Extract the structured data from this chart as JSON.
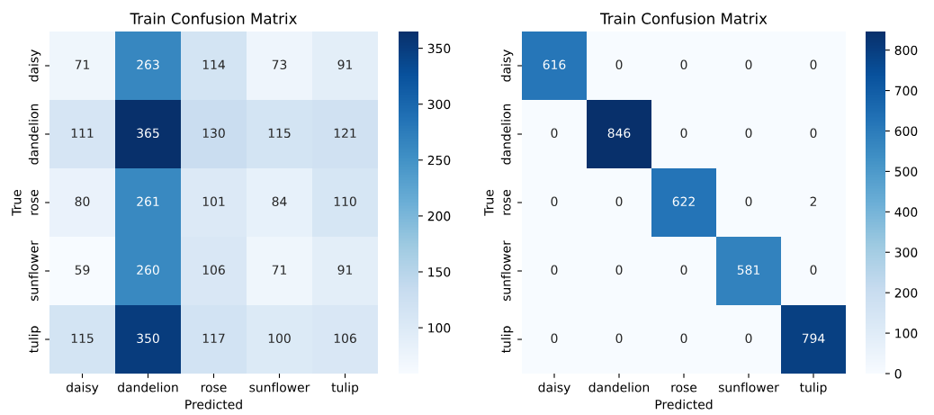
{
  "chart_data": [
    {
      "type": "heatmap",
      "title": "Train Confusion Matrix",
      "xlabel": "Predicted",
      "ylabel": "True",
      "categories": [
        "daisy",
        "dandelion",
        "rose",
        "sunflower",
        "tulip"
      ],
      "y_categories": [
        "daisy",
        "dandelion",
        "rose",
        "sunflower",
        "tulip"
      ],
      "cells": [
        [
          71,
          263,
          114,
          73,
          91
        ],
        [
          111,
          365,
          130,
          115,
          121
        ],
        [
          80,
          261,
          101,
          84,
          110
        ],
        [
          59,
          260,
          106,
          71,
          91
        ],
        [
          115,
          350,
          117,
          100,
          106
        ]
      ],
      "clim": [
        59,
        365
      ],
      "cticks": [
        100,
        150,
        200,
        250,
        300,
        350
      ],
      "data_labels": true
    },
    {
      "type": "heatmap",
      "title": "Train Confusion Matrix",
      "xlabel": "Predicted",
      "ylabel": "True",
      "categories": [
        "daisy",
        "dandelion",
        "rose",
        "sunflower",
        "tulip"
      ],
      "y_categories": [
        "daisy",
        "dandelion",
        "rose",
        "sunflower",
        "tulip"
      ],
      "cells": [
        [
          616,
          0,
          0,
          0,
          0
        ],
        [
          0,
          846,
          0,
          0,
          0
        ],
        [
          0,
          0,
          622,
          0,
          2
        ],
        [
          0,
          0,
          0,
          581,
          0
        ],
        [
          0,
          0,
          0,
          0,
          794
        ]
      ],
      "clim": [
        0,
        846
      ],
      "cticks": [
        0,
        100,
        200,
        300,
        400,
        500,
        600,
        700,
        800
      ],
      "data_labels": true
    }
  ]
}
